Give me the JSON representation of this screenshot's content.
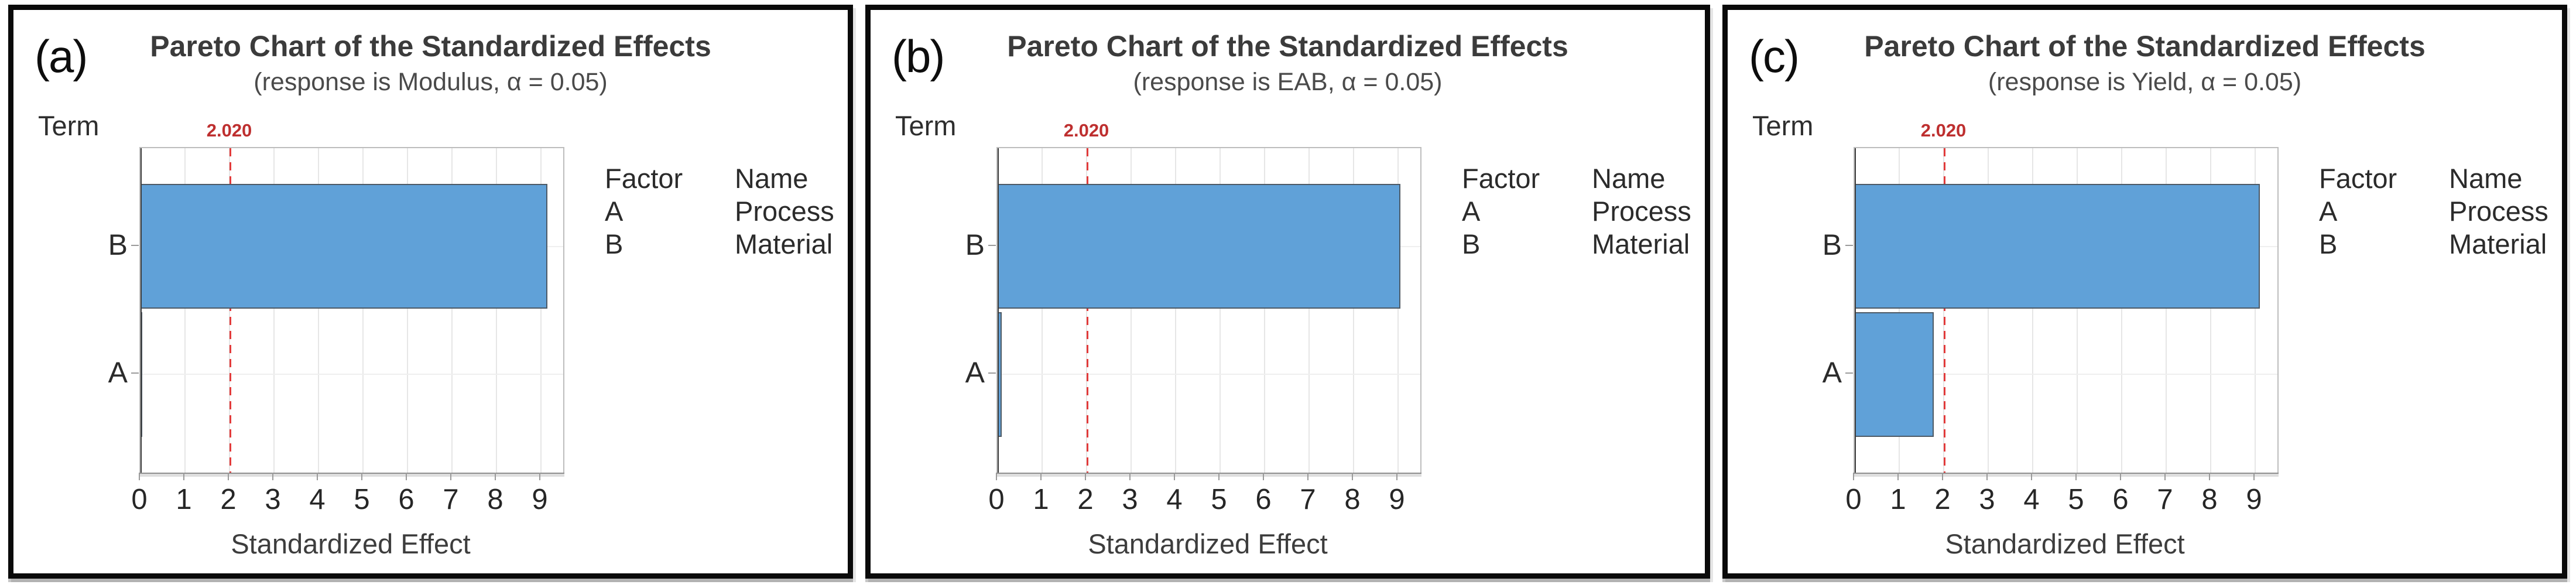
{
  "colors": {
    "bar_fill": "#60A1D8",
    "bar_edge": "#4d5a66",
    "reference_line": "#E23B3B",
    "reference_label_text": "#BE2F2F",
    "gridline": "#E6E6E6",
    "plot_frame": "#BDBDBD",
    "panel_border": "#0A0A0A"
  },
  "legend": {
    "factor_header": "Factor",
    "name_header": "Name",
    "rows": [
      {
        "factor": "A",
        "name": "Process"
      },
      {
        "factor": "B",
        "name": "Material"
      }
    ]
  },
  "chart_data": [
    {
      "type": "bar",
      "orientation": "horizontal",
      "panel_label": "(a)",
      "title": "Pareto Chart of the Standardized Effects",
      "subtitle": "(response is Modulus, α = 0.05)",
      "ylabel": "Term",
      "xlabel": "Standardized Effect",
      "categories": [
        "B",
        "A"
      ],
      "values": [
        9.15,
        0.02
      ],
      "x_ticks": [
        0,
        1,
        2,
        3,
        4,
        5,
        6,
        7,
        8,
        9
      ],
      "xlim": [
        0,
        9.5
      ],
      "reference_line": 2.02,
      "ref_label": "2.020",
      "grid": "vertical-major",
      "legend_position": "right"
    },
    {
      "type": "bar",
      "orientation": "horizontal",
      "panel_label": "(b)",
      "title": "Pareto Chart of the Standardized Effects",
      "subtitle": "(response is EAB, α = 0.05)",
      "ylabel": "Term",
      "xlabel": "Standardized Effect",
      "categories": [
        "B",
        "A"
      ],
      "values": [
        9.05,
        0.09
      ],
      "x_ticks": [
        0,
        1,
        2,
        3,
        4,
        5,
        6,
        7,
        8,
        9
      ],
      "xlim": [
        0,
        9.5
      ],
      "reference_line": 2.02,
      "ref_label": "2.020",
      "grid": "vertical-major",
      "legend_position": "right"
    },
    {
      "type": "bar",
      "orientation": "horizontal",
      "panel_label": "(c)",
      "title": "Pareto Chart of the Standardized Effects",
      "subtitle": "(response is Yield, α = 0.05)",
      "ylabel": "Term",
      "xlabel": "Standardized Effect",
      "categories": [
        "B",
        "A"
      ],
      "values": [
        9.1,
        1.78
      ],
      "x_ticks": [
        0,
        1,
        2,
        3,
        4,
        5,
        6,
        7,
        8,
        9
      ],
      "xlim": [
        0,
        9.5
      ],
      "reference_line": 2.02,
      "ref_label": "2.020",
      "grid": "vertical-major",
      "legend_position": "right"
    }
  ]
}
